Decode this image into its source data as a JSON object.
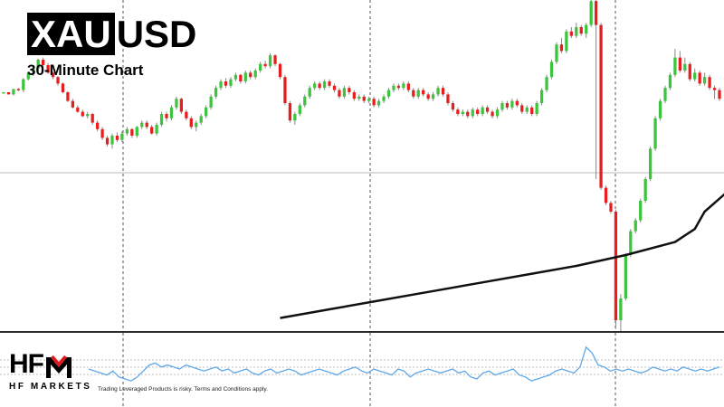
{
  "header": {
    "title_boxed": "XAU",
    "title_rest": "USD",
    "subtitle": "30-Minute Chart"
  },
  "brand": {
    "logo_text": "HF",
    "logo_sub": "HF MARKETS",
    "disclaimer": "Trading Leveraged Products is risky. Terms and Conditions apply.",
    "logo_accent_color": "#e3181f"
  },
  "colors": {
    "bull": "#3cc43c",
    "bear": "#e81e1e",
    "wick": "#888888",
    "moving_average": "#111111",
    "indicator_line": "#5fa8e8",
    "grid_dashed": "#555555",
    "indicator_grid": "#aaaaaa",
    "price_level_line": "#bbbbbb"
  },
  "chart_data": {
    "type": "candlestick",
    "timeframe": "30-Minute",
    "grid": "vertical dashed session separators",
    "legend": "none",
    "candles": [
      [
        0,
        0,
        0,
        0
      ],
      [
        0,
        -2,
        -2,
        0
      ],
      [
        -2,
        3,
        3,
        -3
      ],
      [
        3,
        2,
        4,
        1
      ],
      [
        2,
        12,
        13,
        0
      ],
      [
        12,
        18,
        19,
        11
      ],
      [
        18,
        22,
        23,
        15
      ],
      [
        22,
        30,
        31,
        20
      ],
      [
        30,
        25,
        32,
        23
      ],
      [
        25,
        18,
        27,
        17
      ],
      [
        18,
        14,
        19,
        12
      ],
      [
        14,
        8,
        15,
        6
      ],
      [
        8,
        0,
        9,
        -1
      ],
      [
        0,
        -8,
        1,
        -9
      ],
      [
        -8,
        -14,
        -6,
        -15
      ],
      [
        -14,
        -18,
        -12,
        -19
      ],
      [
        -18,
        -22,
        -16,
        -23
      ],
      [
        -22,
        -20,
        -18,
        -24
      ],
      [
        -20,
        -28,
        -19,
        -30
      ],
      [
        -28,
        -34,
        -26,
        -36
      ],
      [
        -34,
        -42,
        -32,
        -44
      ],
      [
        -42,
        -48,
        -40,
        -50
      ],
      [
        -48,
        -40,
        -38,
        -52
      ],
      [
        -40,
        -44,
        -37,
        -46
      ],
      [
        -44,
        -38,
        -36,
        -46
      ],
      [
        -38,
        -34,
        -32,
        -40
      ],
      [
        -34,
        -40,
        -33,
        -42
      ],
      [
        -40,
        -32,
        -31,
        -42
      ],
      [
        -32,
        -28,
        -26,
        -34
      ],
      [
        -28,
        -32,
        -26,
        -34
      ],
      [
        -32,
        -38,
        -30,
        -39
      ],
      [
        -38,
        -30,
        -28,
        -40
      ],
      [
        -30,
        -20,
        -18,
        -32
      ],
      [
        -20,
        -24,
        -18,
        -27
      ],
      [
        -24,
        -14,
        -12,
        -26
      ],
      [
        -14,
        -6,
        -4,
        -16
      ],
      [
        -6,
        -18,
        -5,
        -20
      ],
      [
        -18,
        -24,
        -16,
        -26
      ],
      [
        -24,
        -32,
        -22,
        -34
      ],
      [
        -32,
        -28,
        -26,
        -36
      ],
      [
        -28,
        -22,
        -20,
        -30
      ],
      [
        -22,
        -14,
        -12,
        -24
      ],
      [
        -14,
        -4,
        -2,
        -16
      ],
      [
        -4,
        4,
        6,
        -6
      ],
      [
        4,
        10,
        12,
        2
      ],
      [
        10,
        6,
        13,
        4
      ],
      [
        6,
        12,
        14,
        4
      ],
      [
        12,
        16,
        18,
        10
      ],
      [
        16,
        10,
        17,
        8
      ],
      [
        10,
        18,
        20,
        8
      ],
      [
        18,
        14,
        20,
        12
      ],
      [
        14,
        20,
        22,
        12
      ],
      [
        20,
        26,
        28,
        18
      ],
      [
        26,
        24,
        29,
        22
      ],
      [
        24,
        34,
        36,
        22
      ],
      [
        34,
        26,
        35,
        24
      ],
      [
        26,
        14,
        27,
        12
      ],
      [
        14,
        -10,
        16,
        -12
      ],
      [
        -10,
        -26,
        -8,
        -28
      ],
      [
        -26,
        -20,
        -18,
        -30
      ],
      [
        -20,
        -12,
        -10,
        -22
      ],
      [
        -12,
        -4,
        -2,
        -14
      ],
      [
        -4,
        4,
        6,
        -6
      ],
      [
        4,
        8,
        10,
        2
      ],
      [
        8,
        4,
        10,
        2
      ],
      [
        4,
        10,
        12,
        2
      ],
      [
        10,
        6,
        12,
        4
      ],
      [
        6,
        2,
        8,
        0
      ],
      [
        2,
        -4,
        4,
        -6
      ],
      [
        -4,
        4,
        6,
        -6
      ],
      [
        4,
        0,
        6,
        -2
      ],
      [
        0,
        -6,
        2,
        -8
      ],
      [
        -6,
        -4,
        -2,
        -8
      ],
      [
        -4,
        -8,
        -2,
        -10
      ],
      [
        -8,
        -6,
        -4,
        -10
      ],
      [
        -6,
        -12,
        -4,
        -14
      ],
      [
        -12,
        -8,
        -6,
        -14
      ],
      [
        -8,
        -4,
        -2,
        -10
      ],
      [
        -4,
        2,
        4,
        -6
      ],
      [
        2,
        6,
        8,
        0
      ],
      [
        6,
        4,
        8,
        2
      ],
      [
        4,
        8,
        10,
        2
      ],
      [
        8,
        2,
        10,
        0
      ],
      [
        2,
        -4,
        4,
        -6
      ],
      [
        -4,
        2,
        4,
        -6
      ],
      [
        2,
        -2,
        4,
        -4
      ],
      [
        -2,
        -6,
        0,
        -8
      ],
      [
        -6,
        -2,
        0,
        -8
      ],
      [
        -2,
        4,
        6,
        -4
      ],
      [
        4,
        -2,
        6,
        -4
      ],
      [
        -2,
        -10,
        0,
        -12
      ],
      [
        -10,
        -16,
        -8,
        -18
      ],
      [
        -16,
        -20,
        -14,
        -22
      ],
      [
        -20,
        -18,
        -16,
        -22
      ],
      [
        -18,
        -22,
        -16,
        -24
      ],
      [
        -22,
        -16,
        -14,
        -24
      ],
      [
        -16,
        -20,
        -14,
        -22
      ],
      [
        -20,
        -14,
        -12,
        -22
      ],
      [
        -14,
        -18,
        -12,
        -20
      ],
      [
        -18,
        -22,
        -16,
        -24
      ],
      [
        -22,
        -16,
        -14,
        -24
      ],
      [
        -16,
        -10,
        -8,
        -18
      ],
      [
        -10,
        -14,
        -8,
        -16
      ],
      [
        -14,
        -8,
        -6,
        -16
      ],
      [
        -8,
        -12,
        -6,
        -14
      ],
      [
        -12,
        -18,
        -10,
        -20
      ],
      [
        -18,
        -14,
        -12,
        -20
      ],
      [
        -14,
        -20,
        -12,
        -22
      ],
      [
        -20,
        -10,
        -8,
        -22
      ],
      [
        -10,
        2,
        4,
        -12
      ],
      [
        2,
        14,
        16,
        0
      ],
      [
        14,
        28,
        30,
        12
      ],
      [
        28,
        44,
        46,
        26
      ],
      [
        44,
        38,
        50,
        36
      ],
      [
        38,
        56,
        58,
        36
      ],
      [
        56,
        52,
        60,
        50
      ],
      [
        52,
        60,
        64,
        50
      ],
      [
        60,
        54,
        62,
        52
      ],
      [
        54,
        62,
        64,
        50
      ],
      [
        62,
        84,
        88,
        60
      ],
      [
        84,
        62,
        86,
        -80
      ],
      [
        62,
        -88,
        64,
        -90
      ],
      [
        -88,
        -102,
        -86,
        -104
      ],
      [
        -102,
        -110,
        -100,
        -112
      ],
      [
        -110,
        -210,
        -108,
        -218
      ],
      [
        -210,
        -190,
        -186,
        -222
      ],
      [
        -190,
        -150,
        -148,
        -192
      ],
      [
        -150,
        -128,
        -126,
        -152
      ],
      [
        -128,
        -118,
        -116,
        -130
      ],
      [
        -118,
        -100,
        -98,
        -120
      ],
      [
        -100,
        -80,
        -78,
        -102
      ],
      [
        -80,
        -52,
        -50,
        -82
      ],
      [
        -52,
        -24,
        -22,
        -54
      ],
      [
        -24,
        -8,
        -6,
        -26
      ],
      [
        -8,
        4,
        6,
        -10
      ],
      [
        4,
        16,
        18,
        2
      ],
      [
        16,
        32,
        40,
        14
      ],
      [
        32,
        20,
        38,
        18
      ],
      [
        20,
        26,
        32,
        18
      ],
      [
        26,
        12,
        28,
        10
      ],
      [
        12,
        18,
        22,
        10
      ],
      [
        18,
        8,
        20,
        6
      ],
      [
        8,
        14,
        18,
        6
      ],
      [
        14,
        4,
        16,
        2
      ],
      [
        4,
        2,
        6,
        -6
      ],
      [
        2,
        -6,
        4,
        -8
      ]
    ],
    "moving_average": [
      [
        56,
        -208
      ],
      [
        66,
        -200
      ],
      [
        76,
        -192
      ],
      [
        86,
        -184
      ],
      [
        96,
        -176
      ],
      [
        106,
        -168
      ],
      [
        116,
        -160
      ],
      [
        126,
        -150
      ],
      [
        136,
        -138
      ],
      [
        140,
        -126
      ],
      [
        142,
        -110
      ],
      [
        146,
        -94
      ],
      [
        150,
        -82
      ],
      [
        155,
        -70
      ],
      [
        160,
        -58
      ],
      [
        170,
        -46
      ],
      [
        176,
        -40
      ],
      [
        181,
        -38
      ],
      [
        181,
        -36
      ]
    ],
    "indicator": [
      0.5,
      0.45,
      0.4,
      0.35,
      0.45,
      0.3,
      0.25,
      0.2,
      0.3,
      0.45,
      0.6,
      0.65,
      0.55,
      0.6,
      0.55,
      0.5,
      0.6,
      0.55,
      0.5,
      0.45,
      0.5,
      0.55,
      0.45,
      0.5,
      0.4,
      0.45,
      0.5,
      0.4,
      0.35,
      0.45,
      0.5,
      0.4,
      0.45,
      0.5,
      0.45,
      0.35,
      0.4,
      0.45,
      0.5,
      0.45,
      0.4,
      0.35,
      0.45,
      0.5,
      0.55,
      0.45,
      0.4,
      0.5,
      0.45,
      0.4,
      0.35,
      0.5,
      0.45,
      0.3,
      0.4,
      0.45,
      0.5,
      0.45,
      0.4,
      0.45,
      0.5,
      0.4,
      0.45,
      0.3,
      0.25,
      0.4,
      0.45,
      0.35,
      0.4,
      0.45,
      0.5,
      0.35,
      0.3,
      0.2,
      0.25,
      0.3,
      0.35,
      0.45,
      0.5,
      0.45,
      0.4,
      0.55,
      1.05,
      0.9,
      0.6,
      0.55,
      0.45,
      0.5,
      0.45,
      0.5,
      0.45,
      0.4,
      0.45,
      0.55,
      0.5,
      0.45,
      0.5,
      0.45,
      0.55,
      0.5,
      0.45,
      0.5,
      0.45,
      0.5,
      0.55
    ]
  }
}
